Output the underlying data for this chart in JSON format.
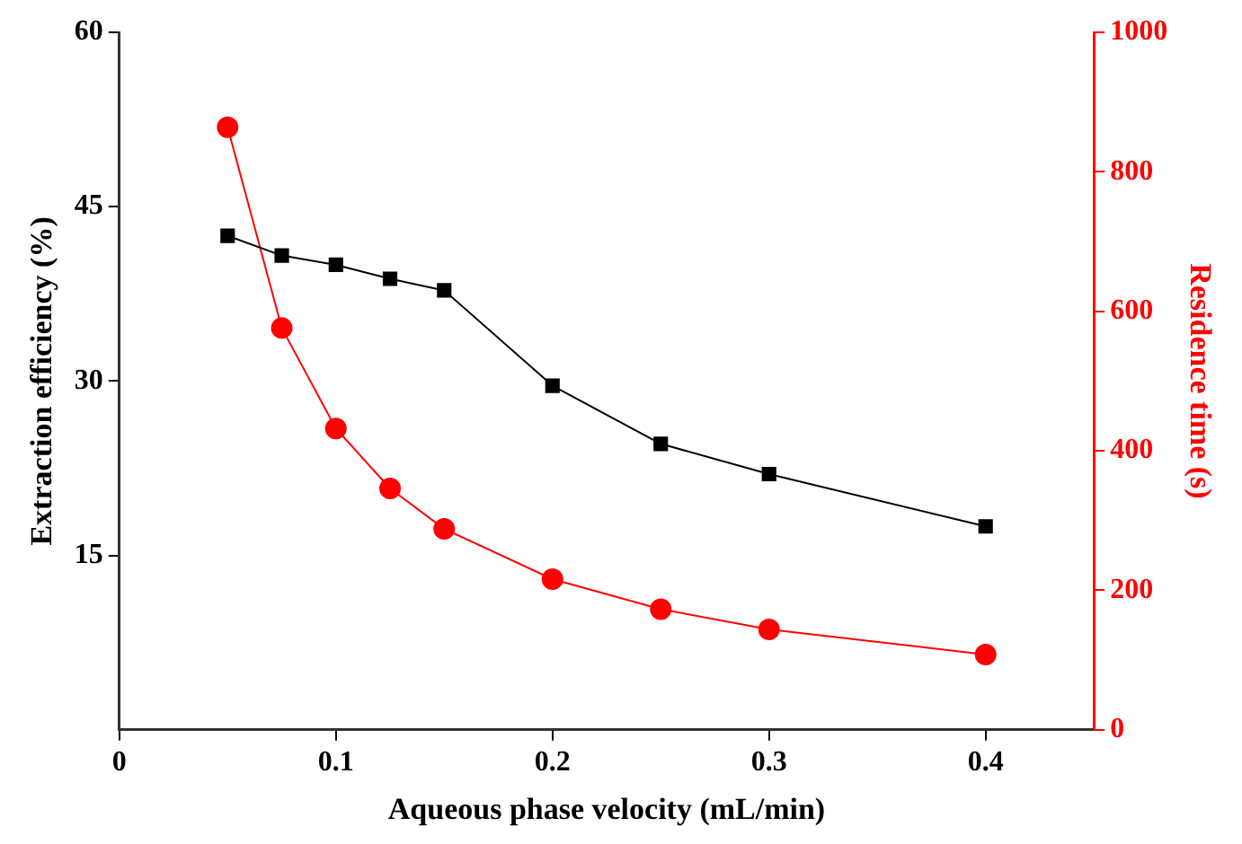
{
  "chart_data": {
    "type": "line",
    "xlabel": "Aqueous phase velocity (mL/min)",
    "ylabel": "Extraction efficiency (%)",
    "y2label": "Residence time (s)",
    "x": [
      0.05,
      0.075,
      0.1,
      0.125,
      0.15,
      0.2,
      0.25,
      0.3,
      0.4
    ],
    "xlim": [
      0,
      0.45
    ],
    "xticks": [
      0,
      0.1,
      0.2,
      0.3,
      0.4
    ],
    "ylim": [
      0,
      60
    ],
    "yticks": [
      15,
      30,
      45,
      60
    ],
    "y2lim": [
      0,
      1000
    ],
    "y2ticks": [
      0,
      200,
      400,
      600,
      800,
      1000
    ],
    "grid": false,
    "legend": false,
    "series": [
      {
        "color": "#000000",
        "marker": "square",
        "values": [
          42.5,
          40.8,
          40.0,
          38.8,
          37.8,
          29.6,
          24.6,
          22.0,
          17.5
        ]
      },
      {
        "color": "#ff0000",
        "marker": "circle",
        "axis": "y2",
        "values": [
          864,
          576,
          432,
          346,
          288,
          216,
          173,
          144,
          108
        ]
      }
    ]
  }
}
